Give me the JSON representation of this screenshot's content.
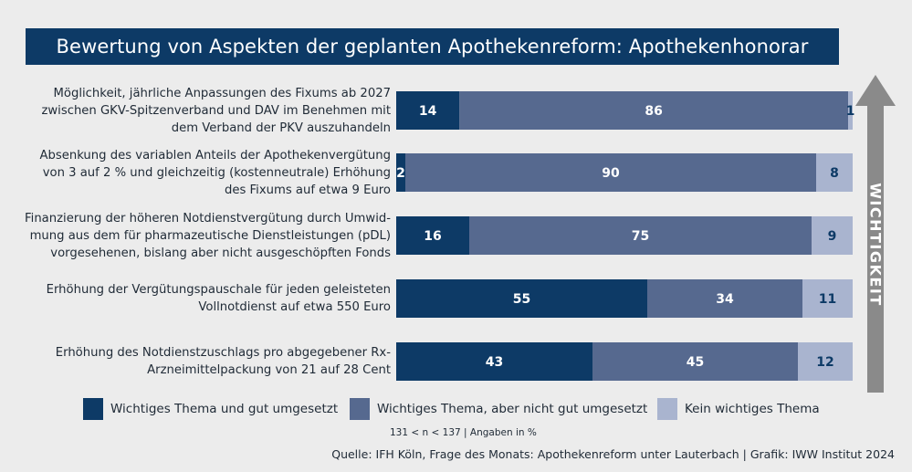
{
  "title": "Bewertung von Aspekten der geplanten Apothekenreform: Apothekenhonorar",
  "axis_label": "WICHTIGKEIT",
  "sample_note": "131 < n < 137 | Angaben in %",
  "source": "Quelle: IFH Köln, Frage des Monats: Apothekenreform unter Lauterbach | Grafik: IWW Institut 2024",
  "colors": {
    "background": "#ececec",
    "title_bg": "#0d3a66",
    "series_1": "#0d3a66",
    "series_2": "#56698f",
    "series_3": "#a9b4cf",
    "arrow": "#8a8a8a"
  },
  "chart_data": {
    "type": "bar",
    "orientation": "horizontal",
    "stacked": true,
    "categories": [
      [
        "Möglichkeit, jährliche Anpassungen des Fixums ab 2027",
        "zwischen GKV-Spitzenverband und DAV im Benehmen mit",
        "dem Verband der PKV auszuhandeln"
      ],
      [
        "Absenkung des variablen Anteils der Apothekenvergütung",
        "von 3 auf 2 % und gleichzeitig (kostenneutrale) Erhöhung",
        "des Fixums auf etwa 9 Euro"
      ],
      [
        "Finanzierung der höheren Notdienstvergütung durch Umwid-",
        "mung aus dem für pharmazeutische Dienstleistungen (pDL)",
        "vorgesehenen, bislang aber nicht ausgeschöpften Fonds"
      ],
      [
        "Erhöhung der Vergütungspauschale für jeden geleisteten",
        "Vollnotdienst auf etwa 550 Euro"
      ],
      [
        "Erhöhung des Notdienstzuschlags pro abgegebener Rx-",
        "Arzneimittelpackung von 21 auf 28 Cent"
      ]
    ],
    "series": [
      {
        "name": "Wichtiges Thema und gut umgesetzt",
        "values": [
          14,
          2,
          16,
          55,
          43
        ]
      },
      {
        "name": "Wichtiges Thema, aber nicht gut umgesetzt",
        "values": [
          86,
          90,
          75,
          34,
          45
        ]
      },
      {
        "name": "Kein wichtiges Thema",
        "values": [
          1,
          8,
          9,
          11,
          12
        ]
      }
    ],
    "xlim": [
      0,
      100
    ],
    "legend_position": "bottom"
  }
}
